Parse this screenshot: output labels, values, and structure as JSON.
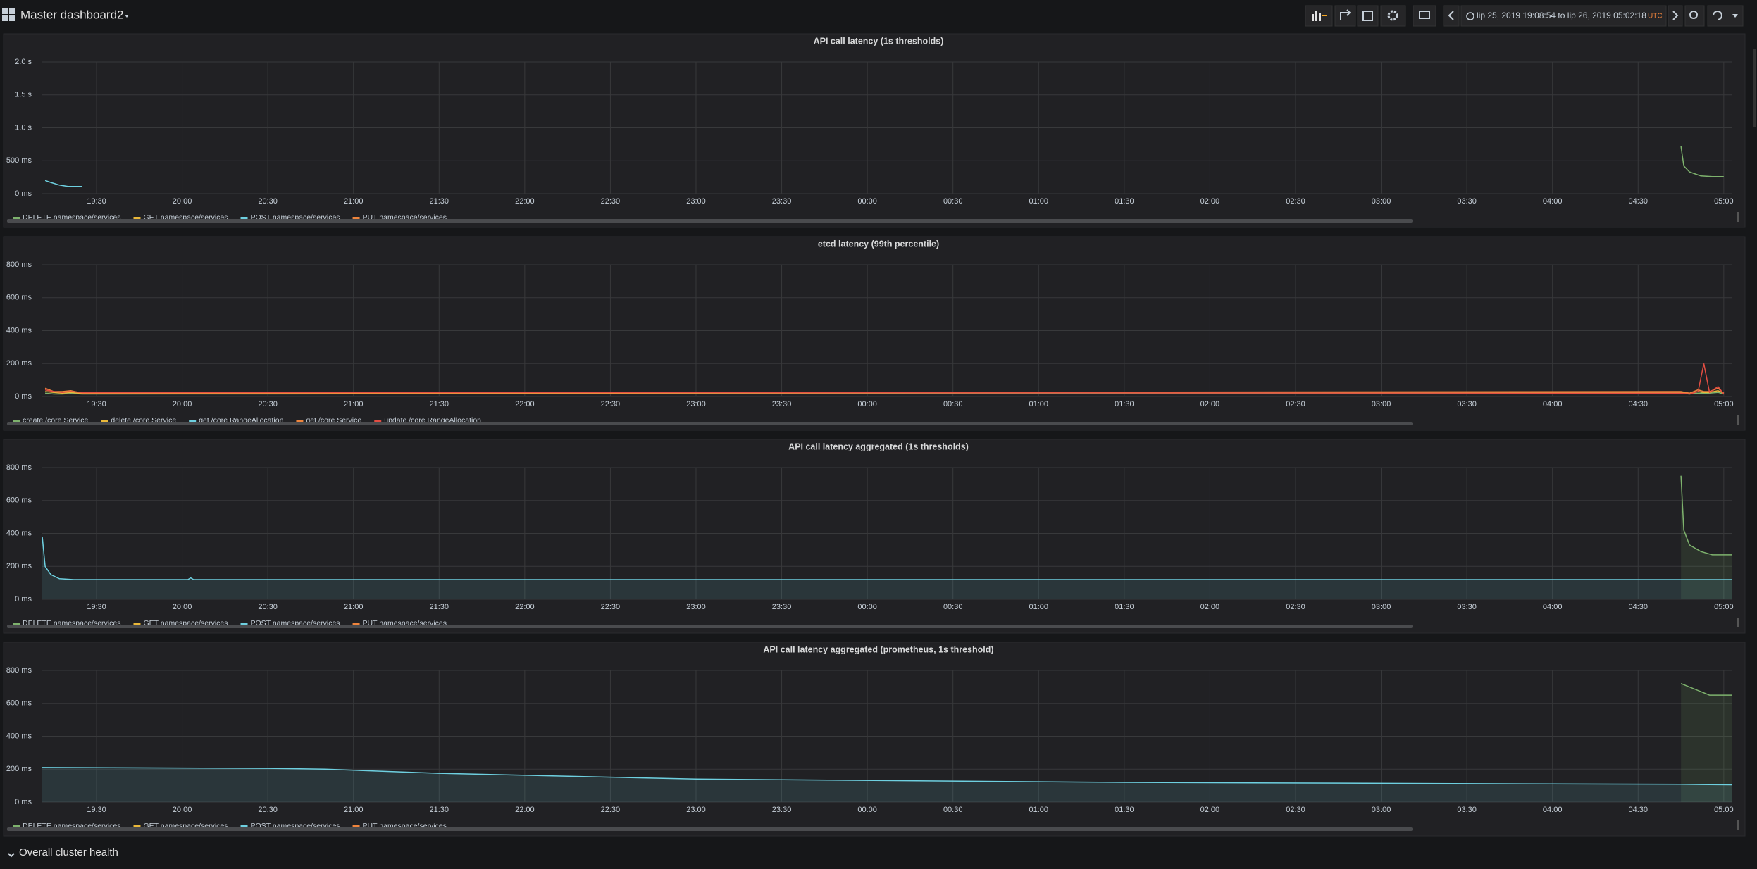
{
  "header": {
    "title": "Master dashboard2",
    "time_range": "lip 25, 2019 19:08:54 to lip 26, 2019 05:02:18",
    "timezone": "UTC"
  },
  "chart_data": [
    {
      "type": "line",
      "title": "API call latency (1s thresholds)",
      "grid": true,
      "fill": false,
      "xlim": [
        "19:11",
        "05:03"
      ],
      "xticks": [
        "19:30",
        "20:00",
        "20:30",
        "21:00",
        "21:30",
        "22:00",
        "22:30",
        "23:00",
        "23:30",
        "00:00",
        "00:30",
        "01:00",
        "01:30",
        "02:00",
        "02:30",
        "03:00",
        "03:30",
        "04:00",
        "04:30",
        "05:00"
      ],
      "ylim": [
        0,
        2000
      ],
      "yticks": [
        {
          "value": 0,
          "label": "0 ms"
        },
        {
          "value": 500,
          "label": "500 ms"
        },
        {
          "value": 1000,
          "label": "1.0 s"
        },
        {
          "value": 1500,
          "label": "1.5 s"
        },
        {
          "value": 2000,
          "label": "2.0 s"
        }
      ],
      "x": [
        "19:12",
        "19:14",
        "19:17",
        "19:20",
        "19:25",
        "04:45",
        "04:46",
        "04:48",
        "04:52",
        "04:56",
        "05:00"
      ],
      "series": [
        {
          "name": "DELETE namespace/services",
          "color": "#7eb26d",
          "values": [
            null,
            null,
            null,
            null,
            null,
            720,
            420,
            330,
            270,
            260,
            260
          ]
        },
        {
          "name": "GET namespace/services",
          "color": "#eab839",
          "values": [
            null,
            null,
            null,
            null,
            null,
            null,
            null,
            null,
            null,
            null,
            null
          ]
        },
        {
          "name": "POST namespace/services",
          "color": "#6ed0e0",
          "values": [
            200,
            170,
            130,
            110,
            110,
            null,
            null,
            null,
            null,
            null,
            null
          ]
        },
        {
          "name": "PUT namespace/services",
          "color": "#ef843c",
          "values": [
            null,
            null,
            null,
            null,
            null,
            null,
            null,
            null,
            null,
            null,
            null
          ]
        }
      ]
    },
    {
      "type": "line",
      "title": "etcd latency (99th percentile)",
      "grid": true,
      "fill": false,
      "xlim": [
        "19:11",
        "05:03"
      ],
      "xticks": [
        "19:30",
        "20:00",
        "20:30",
        "21:00",
        "21:30",
        "22:00",
        "22:30",
        "23:00",
        "23:30",
        "00:00",
        "00:30",
        "01:00",
        "01:30",
        "02:00",
        "02:30",
        "03:00",
        "03:30",
        "04:00",
        "04:30",
        "05:00"
      ],
      "ylim": [
        0,
        800
      ],
      "yticks": [
        {
          "value": 0,
          "label": "0 ms"
        },
        {
          "value": 200,
          "label": "200 ms"
        },
        {
          "value": 400,
          "label": "400 ms"
        },
        {
          "value": 600,
          "label": "600 ms"
        },
        {
          "value": 800,
          "label": "800 ms"
        }
      ],
      "x": [
        "19:12",
        "19:15",
        "19:18",
        "19:21",
        "19:25",
        "04:45",
        "04:48",
        "04:51",
        "04:53",
        "04:55",
        "04:58",
        "05:00"
      ],
      "series": [
        {
          "name": "create /core Service",
          "color": "#7eb26d",
          "values": [
            20,
            15,
            15,
            18,
            15,
            20,
            15,
            20,
            20,
            20,
            25,
            15
          ]
        },
        {
          "name": "delete /core Service",
          "color": "#eab839",
          "values": [
            30,
            25,
            20,
            25,
            18,
            25,
            20,
            30,
            25,
            25,
            35,
            20
          ]
        },
        {
          "name": "get /core RangeAllocation",
          "color": "#6ed0e0",
          "values": [
            null,
            null,
            null,
            null,
            null,
            null,
            null,
            null,
            null,
            null,
            null,
            null
          ]
        },
        {
          "name": "get /core Service",
          "color": "#ef843c",
          "values": [
            50,
            30,
            30,
            35,
            20,
            30,
            20,
            40,
            30,
            30,
            50,
            20
          ]
        },
        {
          "name": "update /core RangeAllocation",
          "color": "#e24d42",
          "values": [
            40,
            30,
            25,
            30,
            25,
            20,
            15,
            30,
            200,
            25,
            60,
            15
          ]
        }
      ]
    },
    {
      "type": "line",
      "title": "API call latency aggregated (1s thresholds)",
      "grid": true,
      "fill": true,
      "xlim": [
        "19:11",
        "05:03"
      ],
      "xticks": [
        "19:30",
        "20:00",
        "20:30",
        "21:00",
        "21:30",
        "22:00",
        "22:30",
        "23:00",
        "23:30",
        "00:00",
        "00:30",
        "01:00",
        "01:30",
        "02:00",
        "02:30",
        "03:00",
        "03:30",
        "04:00",
        "04:30",
        "05:00"
      ],
      "ylim": [
        0,
        800
      ],
      "yticks": [
        {
          "value": 0,
          "label": "0 ms"
        },
        {
          "value": 200,
          "label": "200 ms"
        },
        {
          "value": 400,
          "label": "400 ms"
        },
        {
          "value": 600,
          "label": "600 ms"
        },
        {
          "value": 800,
          "label": "800 ms"
        }
      ],
      "x": [
        "19:11",
        "19:12",
        "19:14",
        "19:17",
        "19:22",
        "20:02",
        "20:03",
        "20:04",
        "04:45",
        "04:46",
        "04:48",
        "04:52",
        "04:56",
        "05:03"
      ],
      "series": [
        {
          "name": "DELETE namespace/services",
          "color": "#7eb26d",
          "values": [
            null,
            null,
            null,
            null,
            null,
            null,
            null,
            null,
            750,
            420,
            330,
            290,
            270,
            270
          ]
        },
        {
          "name": "GET namespace/services",
          "color": "#eab839",
          "values": [
            null,
            null,
            null,
            null,
            null,
            null,
            null,
            null,
            null,
            null,
            null,
            null,
            null,
            null
          ]
        },
        {
          "name": "POST namespace/services",
          "color": "#6ed0e0",
          "values": [
            380,
            200,
            150,
            125,
            120,
            120,
            130,
            120,
            120,
            120,
            120,
            120,
            120,
            120
          ]
        },
        {
          "name": "PUT namespace/services",
          "color": "#ef843c",
          "values": [
            null,
            null,
            null,
            null,
            null,
            null,
            null,
            null,
            null,
            null,
            null,
            null,
            null,
            null
          ]
        }
      ]
    },
    {
      "type": "line",
      "title": "API call latency aggregated (prometheus, 1s threshold)",
      "grid": true,
      "fill": true,
      "xlim": [
        "19:11",
        "05:03"
      ],
      "xticks": [
        "19:30",
        "20:00",
        "20:30",
        "21:00",
        "21:30",
        "22:00",
        "22:30",
        "23:00",
        "23:30",
        "00:00",
        "00:30",
        "01:00",
        "01:30",
        "02:00",
        "02:30",
        "03:00",
        "03:30",
        "04:00",
        "04:30",
        "05:00"
      ],
      "ylim": [
        0,
        800
      ],
      "yticks": [
        {
          "value": 0,
          "label": "0 ms"
        },
        {
          "value": 200,
          "label": "200 ms"
        },
        {
          "value": 400,
          "label": "400 ms"
        },
        {
          "value": 600,
          "label": "600 ms"
        },
        {
          "value": 800,
          "label": "800 ms"
        }
      ],
      "x": [
        "19:11",
        "20:30",
        "20:50",
        "21:30",
        "23:00",
        "01:30",
        "04:00",
        "04:45",
        "04:55",
        "05:03"
      ],
      "series": [
        {
          "name": "DELETE namespace/services",
          "color": "#7eb26d",
          "values": [
            null,
            null,
            null,
            null,
            null,
            null,
            null,
            720,
            650,
            650
          ]
        },
        {
          "name": "GET namespace/services",
          "color": "#eab839",
          "values": [
            null,
            null,
            null,
            null,
            null,
            null,
            null,
            null,
            null,
            null
          ]
        },
        {
          "name": "POST namespace/services",
          "color": "#6ed0e0",
          "values": [
            210,
            205,
            200,
            175,
            140,
            120,
            110,
            108,
            106,
            105
          ]
        },
        {
          "name": "PUT namespace/services",
          "color": "#ef843c",
          "values": [
            null,
            null,
            null,
            null,
            null,
            null,
            null,
            null,
            null,
            null
          ]
        }
      ]
    }
  ],
  "row": {
    "title": "Overall cluster health"
  }
}
